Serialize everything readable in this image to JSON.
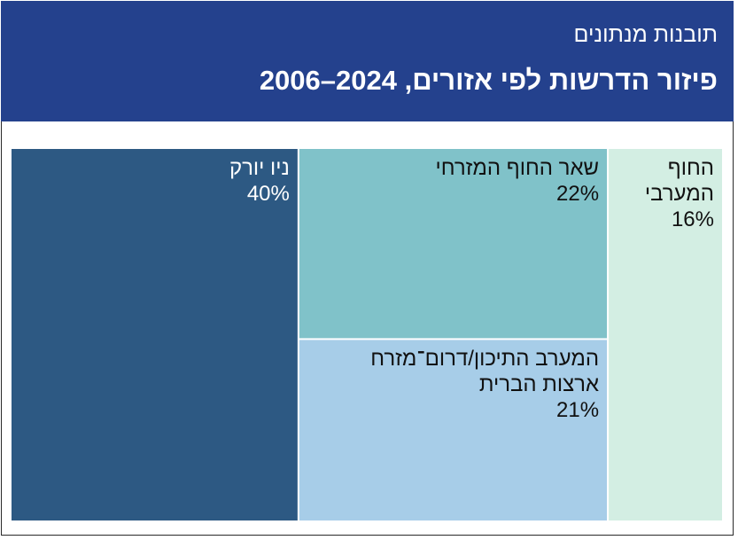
{
  "header": {
    "subtitle": "תובנות מנתונים",
    "title": "פיזור הדרשות לפי אזורים, 2024–2006"
  },
  "chart_data": {
    "type": "treemap",
    "title": "פיזור הדרשות לפי אזורים, 2024–2006",
    "subtitle": "תובנות מנתונים",
    "unit": "%",
    "items": [
      {
        "name": "ניו יורק",
        "lines": [
          "ניו יורק"
        ],
        "value": 40,
        "label": "40%",
        "color": "#2d5983",
        "text_color": "#ffffff"
      },
      {
        "name": "שאר החוף המזרחי",
        "lines": [
          "שאר החוף המזרחי"
        ],
        "value": 22,
        "label": "22%",
        "color": "#80c2c9",
        "text_color": "#111111"
      },
      {
        "name": "המערב התיכון/דרום־מזרח ארצות הברית",
        "lines": [
          "המערב התיכון/דרום־מזרח",
          "ארצות הברית"
        ],
        "value": 21,
        "label": "21%",
        "color": "#a7cde8",
        "text_color": "#111111"
      },
      {
        "name": "החוף המערבי",
        "lines": [
          "החוף",
          "המערבי"
        ],
        "value": 16,
        "label": "16%",
        "color": "#d3eee3",
        "text_color": "#111111"
      }
    ]
  }
}
